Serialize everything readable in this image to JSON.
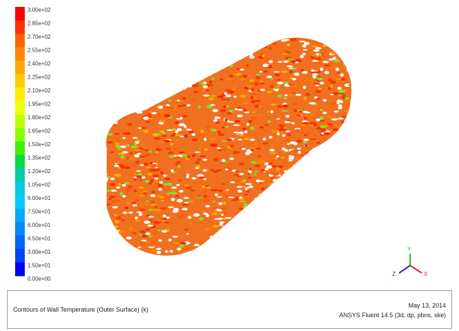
{
  "colorbar": {
    "labels": [
      "3.00e+02",
      "2.85e+02",
      "2.70e+02",
      "2.55e+02",
      "2.40e+02",
      "2.25e+02",
      "2.10e+02",
      "1.95e+02",
      "1.80e+02",
      "1.65e+02",
      "1.50e+02",
      "1.35e+02",
      "1.20e+02",
      "1.05e+02",
      "9.00e+01",
      "7.50e+01",
      "6.00e+01",
      "4.50e+01",
      "3.00e+01",
      "1.50e+01",
      "0.00e+00"
    ]
  },
  "axes_triad": {
    "y": "Y",
    "z": "Z",
    "x": "X"
  },
  "footer": {
    "title": "Contours of Wall Temperature (Outer Surface) (k)",
    "date": "May 13, 2014",
    "software": "ANSYS Fluent 14.5 (3d, dp, pbns, ske)"
  }
}
